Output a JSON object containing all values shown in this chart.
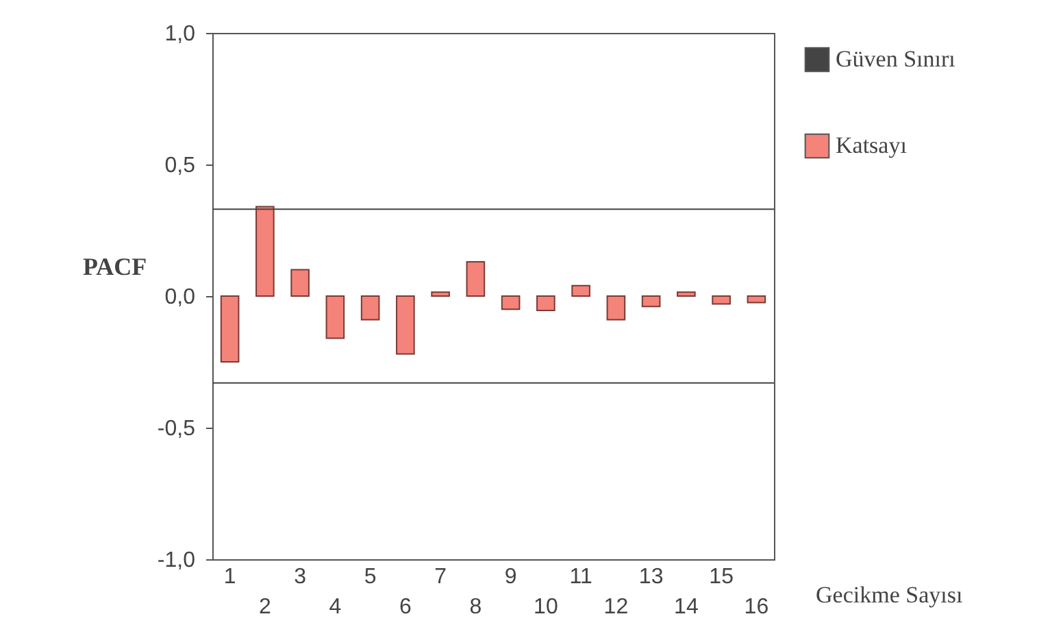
{
  "chart_data": {
    "type": "bar",
    "xlabel": "Gecikme Sayısı",
    "ylabel": "PACF",
    "categories": [
      "1",
      "2",
      "3",
      "4",
      "5",
      "6",
      "7",
      "8",
      "9",
      "10",
      "11",
      "12",
      "13",
      "14",
      "15",
      "16"
    ],
    "series": [
      {
        "name": "Katsayı",
        "color": "#f4837a",
        "values": [
          -0.25,
          0.34,
          0.1,
          -0.16,
          -0.09,
          -0.22,
          0.015,
          0.13,
          -0.05,
          -0.055,
          0.04,
          -0.09,
          -0.04,
          0.015,
          -0.03,
          -0.025
        ]
      }
    ],
    "ylim": [
      -1,
      1
    ],
    "yticks": [
      {
        "value": -1,
        "label": "-1,0"
      },
      {
        "value": -0.5,
        "label": "-0,5"
      },
      {
        "value": 0,
        "label": "0,0"
      },
      {
        "value": 0.5,
        "label": "0,5"
      },
      {
        "value": 1,
        "label": "1,0"
      }
    ],
    "ref_lines": [
      {
        "axis": "y",
        "value": 0.33,
        "label": "Güven Sınırı",
        "color": "#444444"
      },
      {
        "axis": "y",
        "value": -0.33
      }
    ],
    "grid": false,
    "legend": "right"
  }
}
